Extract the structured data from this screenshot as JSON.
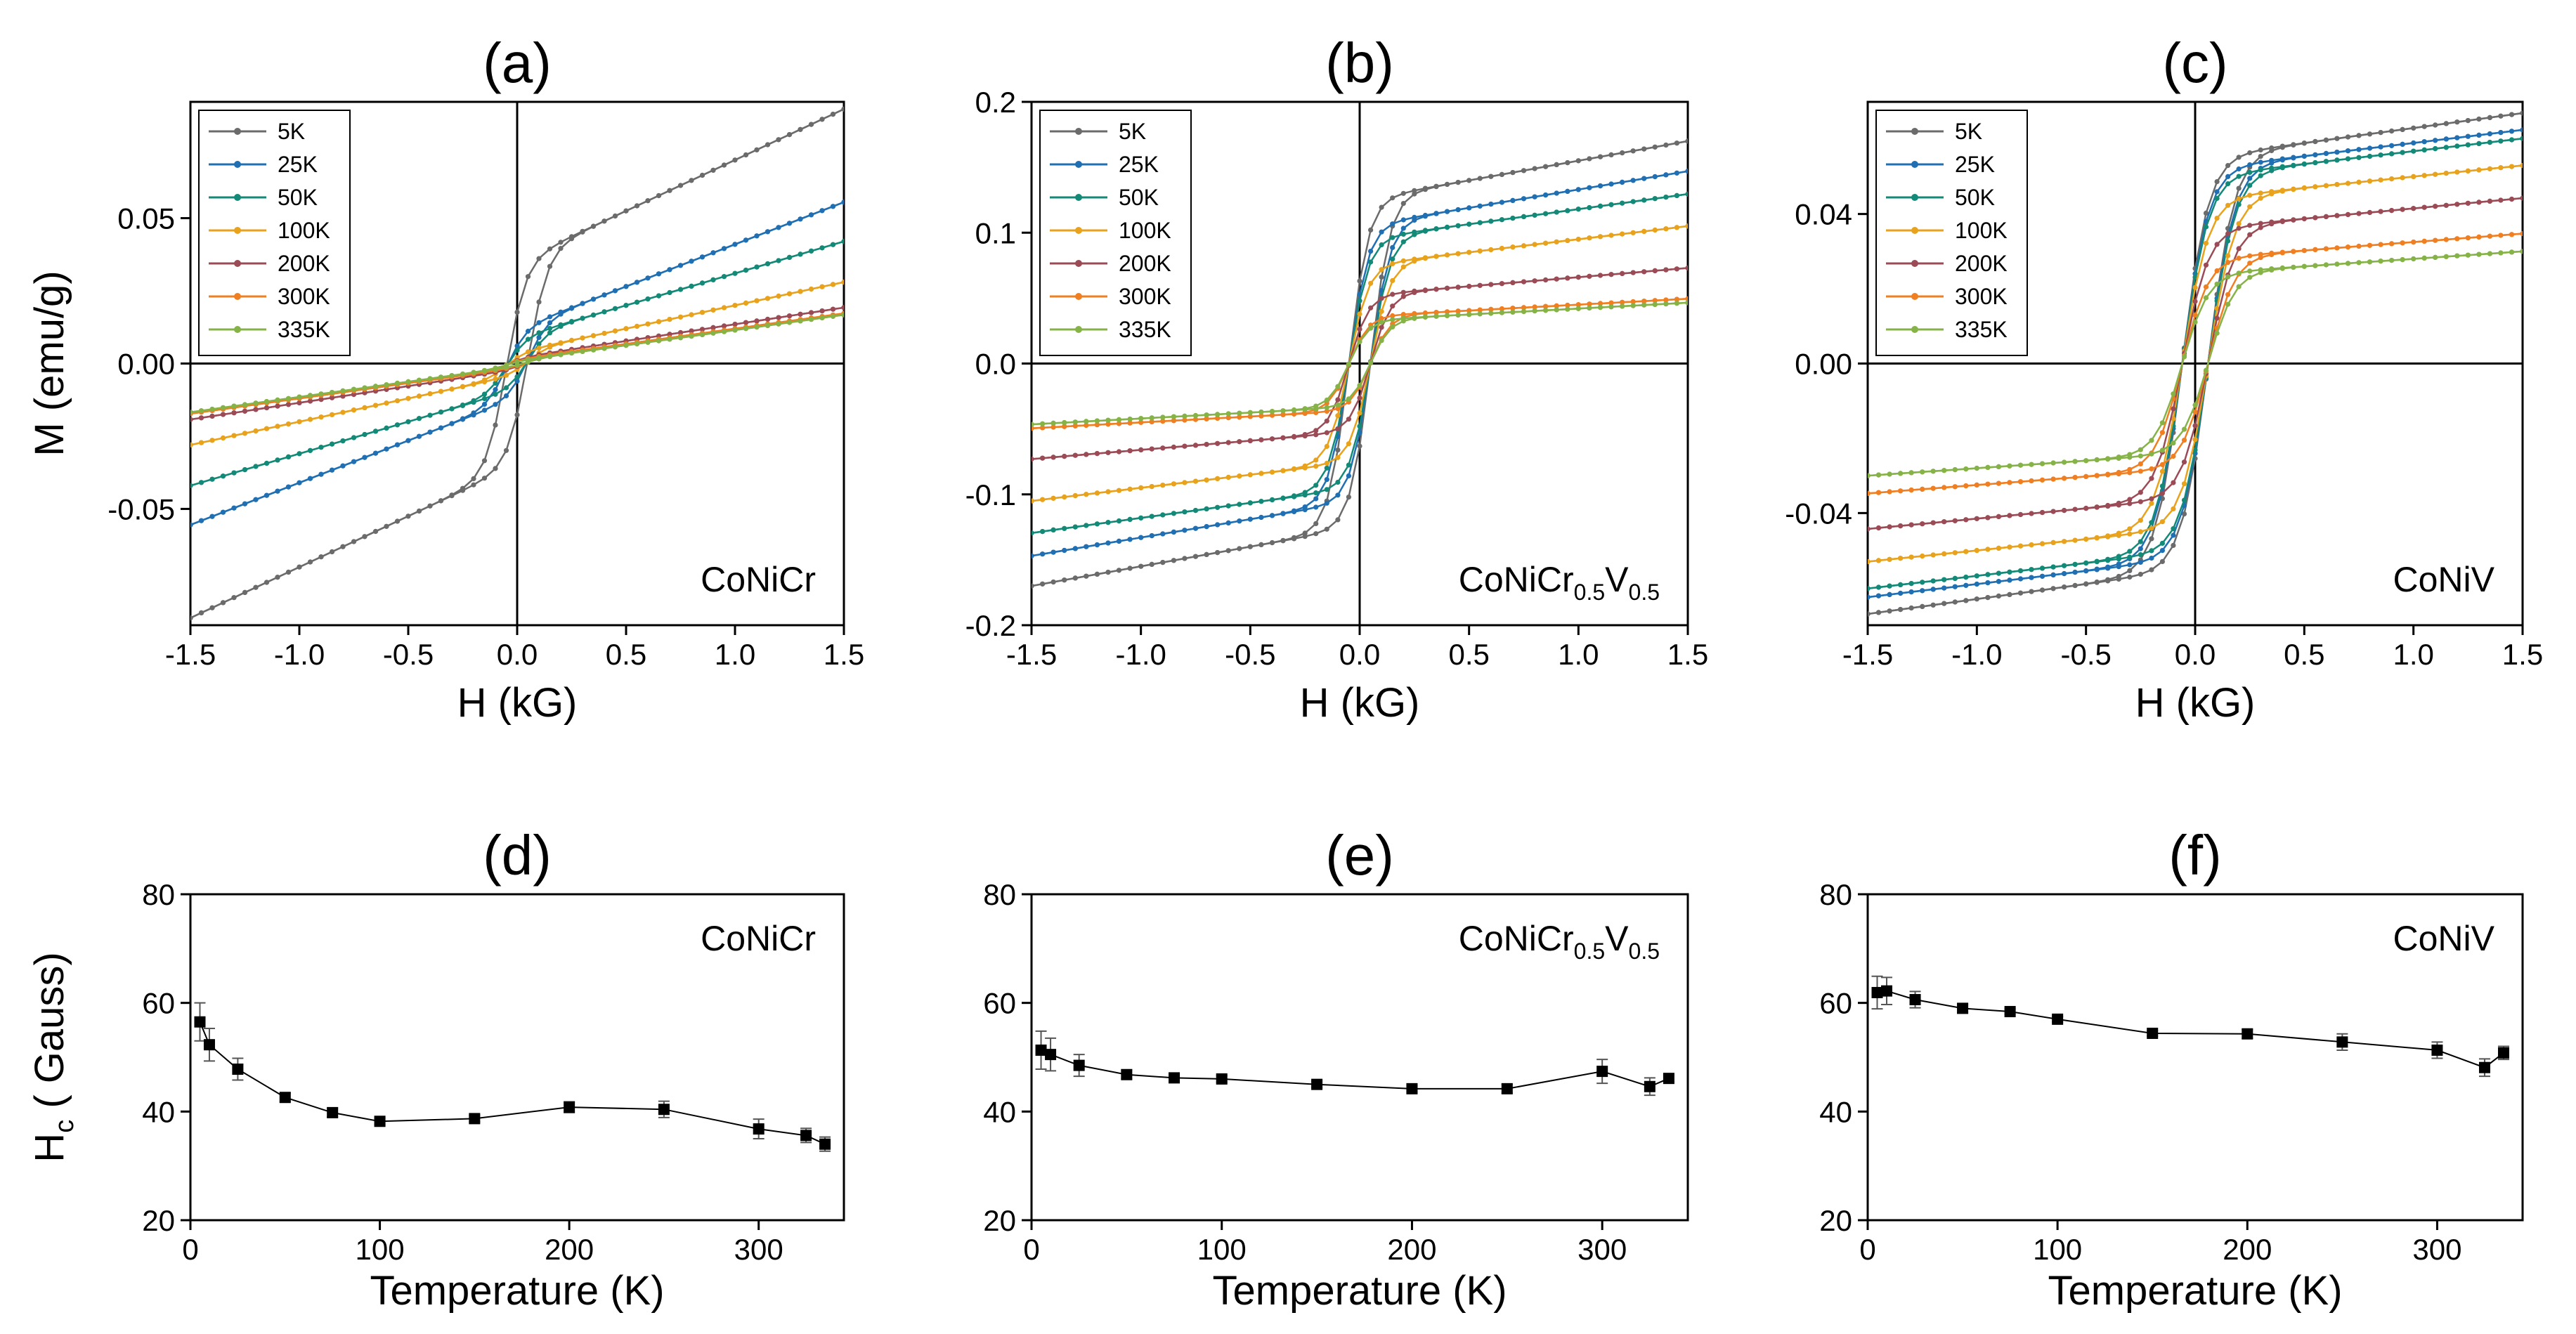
{
  "chart_data": [
    {
      "id": "a",
      "type": "line",
      "title": "(a)",
      "xlabel": "H (kG)",
      "ylabel": "M (emu/g)",
      "xlim": [
        -1.5,
        1.5
      ],
      "ylim": [
        -0.09,
        0.09
      ],
      "xticks": [
        -1.5,
        -1.0,
        -0.5,
        0.0,
        0.5,
        1.0,
        1.5
      ],
      "xtick_labels": [
        "-1.5",
        "-1.0",
        "-0.5",
        "0.0",
        "0.5",
        "1.0",
        "1.5"
      ],
      "yticks": [
        -0.05,
        0.0,
        0.05
      ],
      "ytick_labels": [
        "-0.05",
        "0.00",
        "0.05"
      ],
      "annotation": "CoNiCr",
      "legend_position": "top-left",
      "loop_params": {
        "hc": 0.05,
        "k": 0.09
      },
      "series": [
        {
          "name": "5K",
          "color": "#6b6b6b",
          "ms": 0.035,
          "slope": 0.035
        },
        {
          "name": "25K",
          "color": "#1f6fb2",
          "ms": 0.012,
          "slope": 0.029
        },
        {
          "name": "50K",
          "color": "#138a78",
          "ms": 0.009,
          "slope": 0.022
        },
        {
          "name": "100K",
          "color": "#e8a21c",
          "ms": 0.004,
          "slope": 0.016
        },
        {
          "name": "200K",
          "color": "#9b4b55",
          "ms": 0.002,
          "slope": 0.0115
        },
        {
          "name": "300K",
          "color": "#f07f22",
          "ms": 0.0015,
          "slope": 0.0105
        },
        {
          "name": "335K",
          "color": "#86b347",
          "ms": 0.001,
          "slope": 0.0105
        }
      ]
    },
    {
      "id": "b",
      "type": "line",
      "title": "(b)",
      "xlabel": "H (kG)",
      "ylabel": "",
      "xlim": [
        -1.5,
        1.5
      ],
      "ylim": [
        -0.2,
        0.2
      ],
      "xticks": [
        -1.5,
        -1.0,
        -0.5,
        0.0,
        0.5,
        1.0,
        1.5
      ],
      "xtick_labels": [
        "-1.5",
        "-1.0",
        "-0.5",
        "0.0",
        "0.5",
        "1.0",
        "1.5"
      ],
      "yticks": [
        -0.2,
        -0.1,
        0.0,
        0.1,
        0.2
      ],
      "ytick_labels": [
        "-0.2",
        "-0.1",
        "0.0",
        "0.1",
        "0.2"
      ],
      "annotation": "CoNiCr",
      "annotation_sub1": "0.5",
      "annotation_mid": "V",
      "annotation_sub2": "0.5",
      "legend_position": "top-left",
      "loop_params": {
        "hc": 0.05,
        "k": 0.09
      },
      "series": [
        {
          "name": "5K",
          "color": "#6b6b6b",
          "ms": 0.125,
          "slope": 0.03
        },
        {
          "name": "25K",
          "color": "#1f6fb2",
          "ms": 0.105,
          "slope": 0.028
        },
        {
          "name": "50K",
          "color": "#138a78",
          "ms": 0.095,
          "slope": 0.023
        },
        {
          "name": "100K",
          "color": "#e8a21c",
          "ms": 0.075,
          "slope": 0.02
        },
        {
          "name": "200K",
          "color": "#9b4b55",
          "ms": 0.052,
          "slope": 0.014
        },
        {
          "name": "300K",
          "color": "#f07f22",
          "ms": 0.036,
          "slope": 0.009
        },
        {
          "name": "335K",
          "color": "#86b347",
          "ms": 0.033,
          "slope": 0.009
        }
      ]
    },
    {
      "id": "c",
      "type": "line",
      "title": "(c)",
      "xlabel": "H (kG)",
      "ylabel": "",
      "xlim": [
        -1.5,
        1.5
      ],
      "ylim": [
        -0.07,
        0.07
      ],
      "xticks": [
        -1.5,
        -1.0,
        -0.5,
        0.0,
        0.5,
        1.0,
        1.5
      ],
      "xtick_labels": [
        "-1.5",
        "-1.0",
        "-0.5",
        "0.0",
        "0.5",
        "1.0",
        "1.5"
      ],
      "yticks": [
        -0.04,
        0.0,
        0.04
      ],
      "ytick_labels": [
        "-0.04",
        "0.00",
        "0.04"
      ],
      "annotation": "CoNiV",
      "legend_position": "top-left",
      "loop_params": {
        "hc": 0.06,
        "k": 0.12
      },
      "series": [
        {
          "name": "5K",
          "color": "#6b6b6b",
          "ms": 0.055,
          "slope": 0.008
        },
        {
          "name": "25K",
          "color": "#1f6fb2",
          "ms": 0.052,
          "slope": 0.007
        },
        {
          "name": "50K",
          "color": "#138a78",
          "ms": 0.05,
          "slope": 0.0068
        },
        {
          "name": "100K",
          "color": "#e8a21c",
          "ms": 0.044,
          "slope": 0.006
        },
        {
          "name": "200K",
          "color": "#9b4b55",
          "ms": 0.036,
          "slope": 0.0055
        },
        {
          "name": "300K",
          "color": "#f07f22",
          "ms": 0.028,
          "slope": 0.0045
        },
        {
          "name": "335K",
          "color": "#86b347",
          "ms": 0.024,
          "slope": 0.004
        }
      ]
    },
    {
      "id": "d",
      "type": "scatter",
      "title": "(d)",
      "xlabel": "Temperature (K)",
      "ylabel": "H",
      "ylabel_sub": "c",
      "ylabel_rest": " ( Gauss)",
      "xlim": [
        0,
        345
      ],
      "ylim": [
        20,
        80
      ],
      "xticks": [
        0,
        100,
        200,
        300
      ],
      "xtick_labels": [
        "0",
        "100",
        "200",
        "300"
      ],
      "yticks": [
        20,
        40,
        60,
        80
      ],
      "ytick_labels": [
        "20",
        "40",
        "60",
        "80"
      ],
      "annotation": "CoNiCr",
      "x": [
        5,
        10,
        25,
        50,
        75,
        100,
        150,
        200,
        250,
        300,
        325,
        335
      ],
      "y": [
        56.5,
        52.3,
        47.8,
        42.6,
        39.8,
        38.2,
        38.7,
        40.8,
        40.4,
        36.8,
        35.6,
        34.0
      ],
      "err": [
        3.5,
        3.0,
        2.0,
        0.8,
        0.8,
        0.6,
        0.6,
        1.0,
        1.5,
        1.8,
        1.3,
        1.3
      ]
    },
    {
      "id": "e",
      "type": "scatter",
      "title": "(e)",
      "xlabel": "Temperature (K)",
      "ylabel": "",
      "xlim": [
        0,
        345
      ],
      "ylim": [
        20,
        80
      ],
      "xticks": [
        0,
        100,
        200,
        300
      ],
      "xtick_labels": [
        "0",
        "100",
        "200",
        "300"
      ],
      "yticks": [
        20,
        40,
        60,
        80
      ],
      "ytick_labels": [
        "20",
        "40",
        "60",
        "80"
      ],
      "annotation": "CoNiCr",
      "annotation_sub1": "0.5",
      "annotation_mid": "V",
      "annotation_sub2": "0.5",
      "x": [
        5,
        10,
        25,
        50,
        75,
        100,
        150,
        200,
        250,
        300,
        325,
        335
      ],
      "y": [
        51.3,
        50.5,
        48.5,
        46.8,
        46.2,
        46.0,
        45.0,
        44.2,
        44.2,
        47.4,
        44.6,
        46.1
      ],
      "err": [
        3.5,
        3.0,
        2.0,
        0.8,
        0.6,
        0.6,
        0.6,
        0.6,
        0.8,
        2.2,
        1.6,
        0.6
      ]
    },
    {
      "id": "f",
      "type": "scatter",
      "title": "(f)",
      "xlabel": "Temperature (K)",
      "ylabel": "",
      "xlim": [
        0,
        345
      ],
      "ylim": [
        20,
        80
      ],
      "xticks": [
        0,
        100,
        200,
        300
      ],
      "xtick_labels": [
        "0",
        "100",
        "200",
        "300"
      ],
      "yticks": [
        20,
        40,
        60,
        80
      ],
      "ytick_labels": [
        "20",
        "40",
        "60",
        "80"
      ],
      "annotation": "CoNiV",
      "x": [
        5,
        10,
        25,
        50,
        75,
        100,
        150,
        200,
        250,
        300,
        325,
        335
      ],
      "y": [
        61.9,
        62.2,
        60.6,
        59.0,
        58.4,
        57.0,
        54.4,
        54.3,
        52.8,
        51.3,
        48.1,
        50.8
      ],
      "err": [
        3.0,
        2.5,
        1.5,
        0.8,
        0.5,
        0.5,
        0.5,
        0.8,
        1.5,
        1.5,
        1.6,
        1.2
      ]
    }
  ]
}
